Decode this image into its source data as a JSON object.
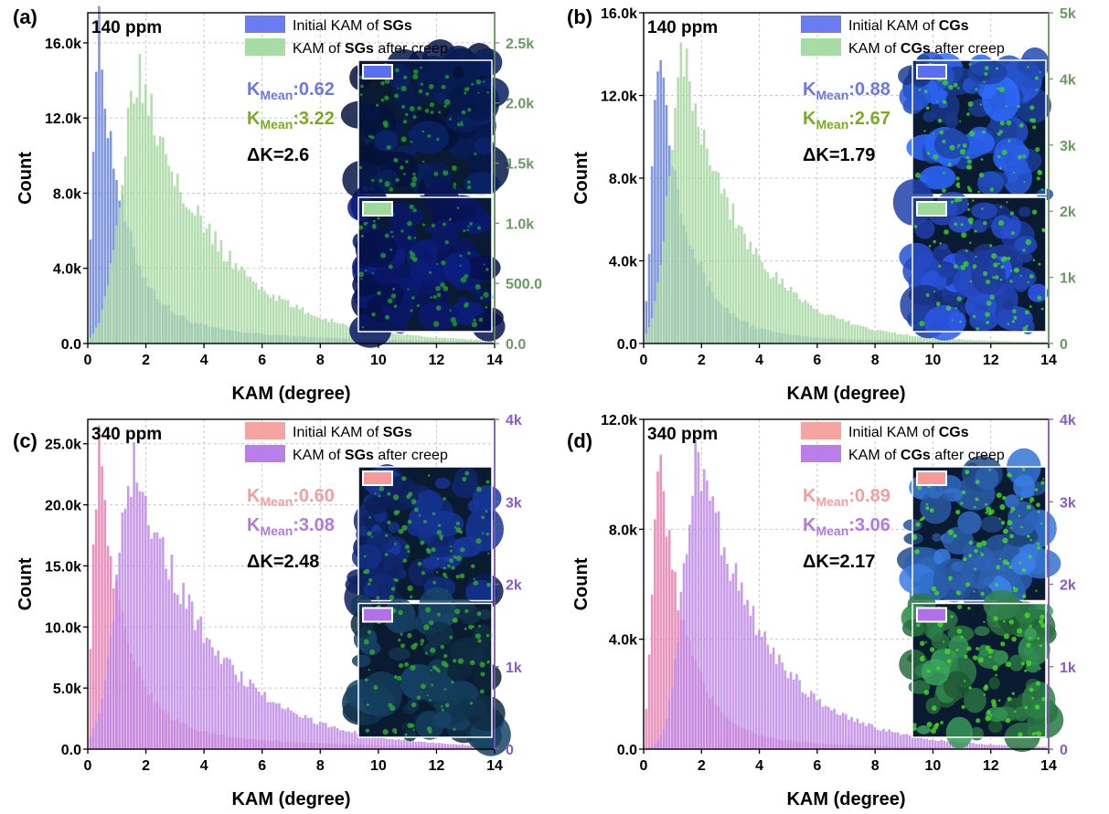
{
  "chart_data": [
    {
      "type": "bar",
      "panel_label": "(a)",
      "annotation": "140 ppm",
      "xlabel": "KAM (degree)",
      "ylabel": "Count",
      "xlim": [
        0,
        14
      ],
      "xticks": [
        "0",
        "2",
        "4",
        "6",
        "8",
        "10",
        "12",
        "14"
      ],
      "ylim_left": [
        0,
        17600
      ],
      "yticks_left": [
        {
          "v": 0,
          "label": "0.0"
        },
        {
          "v": 4000,
          "label": "4.0k"
        },
        {
          "v": 8000,
          "label": "8.0k"
        },
        {
          "v": 12000,
          "label": "12.0k"
        },
        {
          "v": 16000,
          "label": "16.0k"
        }
      ],
      "ylim_right": [
        0,
        2750
      ],
      "yticks_right": [
        {
          "v": 0,
          "label": "0.0"
        },
        {
          "v": 500,
          "label": "500.0"
        },
        {
          "v": 1000,
          "label": "1.0k"
        },
        {
          "v": 1500,
          "label": "1.5k"
        },
        {
          "v": 2000,
          "label": "2.0k"
        },
        {
          "v": 2500,
          "label": "2.5k"
        }
      ],
      "right_axis_color": "#6a9a62",
      "grid": true,
      "legend_position": "top-right",
      "legend": [
        {
          "prefix": "Initial KAM of ",
          "bold": "SGs",
          "suffix": "",
          "color": "#5a6ef0"
        },
        {
          "prefix": "KAM of ",
          "bold": "SGs",
          "suffix": " after creep",
          "color": "#9ed89a"
        }
      ],
      "kmean": [
        {
          "k": "K",
          "sub": "Mean",
          "val": ":0.62",
          "color": "#6a78e0"
        },
        {
          "k": "K",
          "sub": "Mean",
          "val": ":3.22",
          "color": "#7aaa22"
        }
      ],
      "delta": "ΔK=2.6",
      "series": [
        {
          "name": "Initial KAM of SGs",
          "axis": "left",
          "color": "#6a84d8",
          "peak_x": 0.35,
          "peak": 16400,
          "sigma": 0.55,
          "tail": 0.09
        },
        {
          "name": "KAM of SGs after creep",
          "axis": "right",
          "color": "#a8d8a2",
          "peak_x": 1.75,
          "peak": 2300,
          "sigma": 1.6,
          "tail": 0.035
        }
      ],
      "inset": {
        "top_key": "#5a6ef0",
        "bottom_key": "#9ed89a",
        "top": [
          8,
          30,
          90
        ],
        "bottom": [
          10,
          25,
          110
        ],
        "speck": [
          30,
          160,
          40
        ]
      }
    },
    {
      "type": "bar",
      "panel_label": "(b)",
      "annotation": "140 ppm",
      "xlabel": "KAM (degree)",
      "ylabel": "Count",
      "xlim": [
        0,
        14
      ],
      "xticks": [
        "0",
        "2",
        "4",
        "6",
        "8",
        "10",
        "12",
        "14"
      ],
      "ylim_left": [
        0,
        16000
      ],
      "yticks_left": [
        {
          "v": 0,
          "label": "0.0"
        },
        {
          "v": 4000,
          "label": "4.0k"
        },
        {
          "v": 8000,
          "label": "8.0k"
        },
        {
          "v": 12000,
          "label": "12.0k"
        },
        {
          "v": 16000,
          "label": "16.0k"
        }
      ],
      "ylim_right": [
        0,
        5000
      ],
      "yticks_right": [
        {
          "v": 0,
          "label": "0"
        },
        {
          "v": 1000,
          "label": "1k"
        },
        {
          "v": 2000,
          "label": "2k"
        },
        {
          "v": 3000,
          "label": "3k"
        },
        {
          "v": 4000,
          "label": "4k"
        },
        {
          "v": 5000,
          "label": "5k"
        }
      ],
      "right_axis_color": "#6a9a62",
      "grid": true,
      "legend_position": "top-right",
      "legend": [
        {
          "prefix": "Initial KAM of ",
          "bold": "CGs",
          "suffix": "",
          "color": "#5a6ef0"
        },
        {
          "prefix": "KAM of ",
          "bold": "CGs",
          "suffix": " after creep",
          "color": "#9ed89a"
        }
      ],
      "kmean": [
        {
          "k": "K",
          "sub": "Mean",
          "val": ":0.88",
          "color": "#6a78e0"
        },
        {
          "k": "K",
          "sub": "Mean",
          "val": ":2.67",
          "color": "#7aaa22"
        }
      ],
      "delta": "ΔK=1.79",
      "series": [
        {
          "name": "Initial KAM of CGs",
          "axis": "left",
          "color": "#6a84d8",
          "peak_x": 0.5,
          "peak": 14600,
          "sigma": 0.6,
          "tail": 0.05
        },
        {
          "name": "KAM of CGs after creep",
          "axis": "right",
          "color": "#a8d8a2",
          "peak_x": 1.35,
          "peak": 4400,
          "sigma": 1.3,
          "tail": 0.03
        }
      ],
      "inset": {
        "top_key": "#5a6ef0",
        "bottom_key": "#9ed89a",
        "top": [
          40,
          90,
          220
        ],
        "bottom": [
          40,
          80,
          210
        ],
        "speck": [
          60,
          210,
          40
        ]
      }
    },
    {
      "type": "bar",
      "panel_label": "(c)",
      "annotation": "340 ppm",
      "xlabel": "KAM (degree)",
      "ylabel": "Count",
      "xlim": [
        0,
        14
      ],
      "xticks": [
        "0",
        "2",
        "4",
        "6",
        "8",
        "10",
        "12",
        "14"
      ],
      "ylim_left": [
        0,
        27000
      ],
      "yticks_left": [
        {
          "v": 0,
          "label": "0.0"
        },
        {
          "v": 5000,
          "label": "5.0k"
        },
        {
          "v": 10000,
          "label": "10.0k"
        },
        {
          "v": 15000,
          "label": "15.0k"
        },
        {
          "v": 20000,
          "label": "20.0k"
        },
        {
          "v": 25000,
          "label": "25.0k"
        }
      ],
      "ylim_right": [
        0,
        4000
      ],
      "yticks_right": [
        {
          "v": 0,
          "label": "0"
        },
        {
          "v": 1000,
          "label": "1k"
        },
        {
          "v": 2000,
          "label": "2k"
        },
        {
          "v": 3000,
          "label": "3k"
        },
        {
          "v": 4000,
          "label": "4k"
        }
      ],
      "right_axis_color": "#8a5ac8",
      "grid": true,
      "legend_position": "top-right",
      "legend": [
        {
          "prefix": "Initial KAM of ",
          "bold": "SGs",
          "suffix": "",
          "color": "#f59a98"
        },
        {
          "prefix": "KAM of ",
          "bold": "SGs",
          "suffix": " after creep",
          "color": "#b070e8"
        }
      ],
      "kmean": [
        {
          "k": "K",
          "sub": "Mean",
          "val": ":0.60",
          "color": "#f0a0a0"
        },
        {
          "k": "K",
          "sub": "Mean",
          "val": ":3.08",
          "color": "#b07ae0"
        }
      ],
      "delta": "ΔK=2.48",
      "series": [
        {
          "name": "Initial KAM of SGs",
          "axis": "left",
          "color": "#e880b0",
          "peak_x": 0.35,
          "peak": 24300,
          "sigma": 0.55,
          "tail": 0.09
        },
        {
          "name": "KAM of SGs after creep",
          "axis": "right",
          "color": "#c08ae8",
          "peak_x": 1.6,
          "peak": 3500,
          "sigma": 1.6,
          "tail": 0.035
        }
      ],
      "inset": {
        "top_key": "#f59a98",
        "bottom_key": "#b070e8",
        "top": [
          20,
          50,
          140
        ],
        "bottom": [
          20,
          60,
          90
        ],
        "speck": [
          50,
          170,
          50
        ]
      }
    },
    {
      "type": "bar",
      "panel_label": "(d)",
      "annotation": "340 ppm",
      "xlabel": "KAM (degree)",
      "ylabel": "Count",
      "xlim": [
        0,
        14
      ],
      "xticks": [
        "0",
        "2",
        "4",
        "6",
        "8",
        "10",
        "12",
        "14"
      ],
      "ylim_left": [
        0,
        12000
      ],
      "yticks_left": [
        {
          "v": 0,
          "label": "0.0"
        },
        {
          "v": 4000,
          "label": "4.0k"
        },
        {
          "v": 8000,
          "label": "8.0k"
        },
        {
          "v": 12000,
          "label": "12.0k"
        }
      ],
      "ylim_right": [
        0,
        4000
      ],
      "yticks_right": [
        {
          "v": 0,
          "label": "0"
        },
        {
          "v": 1000,
          "label": "1k"
        },
        {
          "v": 2000,
          "label": "2k"
        },
        {
          "v": 3000,
          "label": "3k"
        },
        {
          "v": 4000,
          "label": "4k"
        }
      ],
      "right_axis_color": "#8a5ac8",
      "grid": true,
      "legend_position": "top-right",
      "legend": [
        {
          "prefix": "Initial KAM of ",
          "bold": "CGs",
          "suffix": "",
          "color": "#f59a98"
        },
        {
          "prefix": "KAM of ",
          "bold": "CGs",
          "suffix": " after creep",
          "color": "#b070e8"
        }
      ],
      "kmean": [
        {
          "k": "K",
          "sub": "Mean",
          "val": ":0.89",
          "color": "#f0a0a0"
        },
        {
          "k": "K",
          "sub": "Mean",
          "val": ":3.06",
          "color": "#b07ae0"
        }
      ],
      "delta": "ΔK=2.17",
      "series": [
        {
          "name": "Initial KAM of CGs",
          "axis": "left",
          "color": "#e880b0",
          "peak_x": 0.5,
          "peak": 10400,
          "sigma": 0.6,
          "tail": 0.05
        },
        {
          "name": "KAM of CGs after creep",
          "axis": "right",
          "color": "#c08ae8",
          "peak_x": 1.9,
          "peak": 3550,
          "sigma": 1.4,
          "tail": 0.035
        }
      ],
      "inset": {
        "top_key": "#f59a98",
        "bottom_key": "#b070e8",
        "top": [
          50,
          110,
          200
        ],
        "bottom": [
          50,
          140,
          80
        ],
        "speck": [
          70,
          220,
          40
        ]
      }
    }
  ]
}
